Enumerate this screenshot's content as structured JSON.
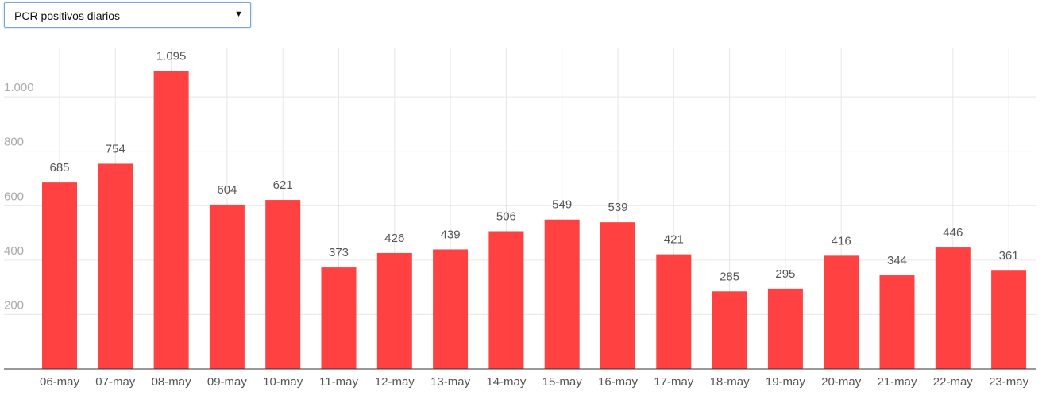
{
  "selector": {
    "selected": "PCR positivos diarios",
    "arrow_icon": "triangle-down-icon"
  },
  "chart_data": {
    "type": "bar",
    "categories": [
      "06-may",
      "07-may",
      "08-may",
      "09-may",
      "10-may",
      "11-may",
      "12-may",
      "13-may",
      "14-may",
      "15-may",
      "16-may",
      "17-may",
      "18-may",
      "19-may",
      "20-may",
      "21-may",
      "22-may",
      "23-may"
    ],
    "values": [
      685,
      754,
      1095,
      604,
      621,
      373,
      426,
      439,
      506,
      549,
      539,
      421,
      285,
      295,
      416,
      344,
      446,
      361
    ],
    "value_labels": [
      "685",
      "754",
      "1.095",
      "604",
      "621",
      "373",
      "426",
      "439",
      "506",
      "549",
      "539",
      "421",
      "285",
      "295",
      "416",
      "344",
      "446",
      "361"
    ],
    "yticks": [
      200,
      400,
      600,
      800,
      1000
    ],
    "ytick_labels": [
      "200",
      "400",
      "600",
      "800",
      "1.000"
    ],
    "ylim": [
      0,
      1180
    ],
    "grid": true,
    "bar_color": "#ff4141"
  }
}
